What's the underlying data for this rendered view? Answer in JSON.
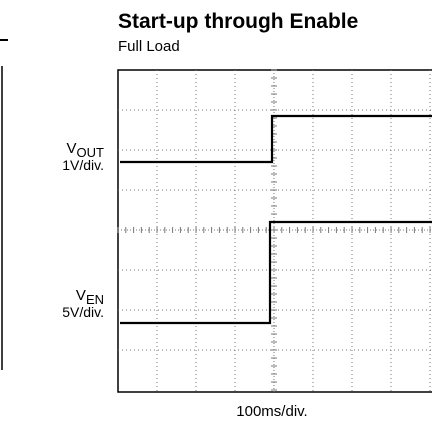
{
  "title": "Start-up through Enable",
  "subtitle": "Full Load",
  "channels": [
    {
      "symbol": "V",
      "subscript": "OUT",
      "scale": "1V/div."
    },
    {
      "symbol": "V",
      "subscript": "EN",
      "scale": "5V/div."
    }
  ],
  "x_scale": "100ms/div."
}
